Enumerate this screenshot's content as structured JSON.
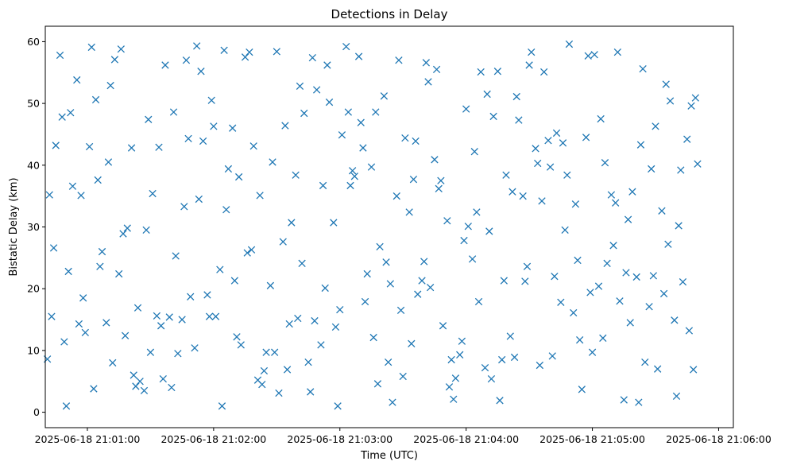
{
  "chart_data": {
    "type": "scatter",
    "title": "Detections in Delay",
    "xlabel": "Time (UTC)",
    "ylabel": "Bistatic Delay (km)",
    "marker": "x",
    "color": "#1f77b4",
    "grid": false,
    "x_ticks": [
      "2025-06-18 21:01:00",
      "2025-06-18 21:02:00",
      "2025-06-18 21:03:00",
      "2025-06-18 21:04:00",
      "2025-06-18 21:05:00",
      "2025-06-18 21:06:00"
    ],
    "y_ticks": [
      0,
      10,
      20,
      30,
      40,
      50,
      60
    ],
    "xlim": [
      "2025-06-18 21:00:40",
      "2025-06-18 21:06:07"
    ],
    "ylim": [
      -2.5,
      62.5
    ],
    "x": [
      "2025-06-18 21:00:41",
      "2025-06-18 21:00:42",
      "2025-06-18 21:00:43",
      "2025-06-18 21:00:44",
      "2025-06-18 21:00:45",
      "2025-06-18 21:00:47",
      "2025-06-18 21:00:48",
      "2025-06-18 21:00:49",
      "2025-06-18 21:00:50",
      "2025-06-18 21:00:51",
      "2025-06-18 21:00:52",
      "2025-06-18 21:00:53",
      "2025-06-18 21:00:55",
      "2025-06-18 21:00:56",
      "2025-06-18 21:00:57",
      "2025-06-18 21:00:58",
      "2025-06-18 21:00:59",
      "2025-06-18 21:01:01",
      "2025-06-18 21:01:02",
      "2025-06-18 21:01:03",
      "2025-06-18 21:01:04",
      "2025-06-18 21:01:05",
      "2025-06-18 21:01:06",
      "2025-06-18 21:01:07",
      "2025-06-18 21:01:09",
      "2025-06-18 21:01:10",
      "2025-06-18 21:01:11",
      "2025-06-18 21:01:12",
      "2025-06-18 21:01:13",
      "2025-06-18 21:01:15",
      "2025-06-18 21:01:16",
      "2025-06-18 21:01:17",
      "2025-06-18 21:01:18",
      "2025-06-18 21:01:19",
      "2025-06-18 21:01:21",
      "2025-06-18 21:01:22",
      "2025-06-18 21:01:23",
      "2025-06-18 21:01:24",
      "2025-06-18 21:01:25",
      "2025-06-18 21:01:27",
      "2025-06-18 21:01:28",
      "2025-06-18 21:01:29",
      "2025-06-18 21:01:30",
      "2025-06-18 21:01:31",
      "2025-06-18 21:01:33",
      "2025-06-18 21:01:34",
      "2025-06-18 21:01:35",
      "2025-06-18 21:01:36",
      "2025-06-18 21:01:37",
      "2025-06-18 21:01:39",
      "2025-06-18 21:01:40",
      "2025-06-18 21:01:41",
      "2025-06-18 21:01:42",
      "2025-06-18 21:01:43",
      "2025-06-18 21:01:45",
      "2025-06-18 21:01:46",
      "2025-06-18 21:01:47",
      "2025-06-18 21:01:48",
      "2025-06-18 21:01:49",
      "2025-06-18 21:01:51",
      "2025-06-18 21:01:52",
      "2025-06-18 21:01:53",
      "2025-06-18 21:01:54",
      "2025-06-18 21:01:55",
      "2025-06-18 21:01:57",
      "2025-06-18 21:01:58",
      "2025-06-18 21:01:59",
      "2025-06-18 21:02:00",
      "2025-06-18 21:02:01",
      "2025-06-18 21:02:03",
      "2025-06-18 21:02:04",
      "2025-06-18 21:02:05",
      "2025-06-18 21:02:06",
      "2025-06-18 21:02:07",
      "2025-06-18 21:02:09",
      "2025-06-18 21:02:10",
      "2025-06-18 21:02:11",
      "2025-06-18 21:02:12",
      "2025-06-18 21:02:13",
      "2025-06-18 21:02:15",
      "2025-06-18 21:02:16",
      "2025-06-18 21:02:17",
      "2025-06-18 21:02:18",
      "2025-06-18 21:02:19",
      "2025-06-18 21:02:21",
      "2025-06-18 21:02:22",
      "2025-06-18 21:02:23",
      "2025-06-18 21:02:24",
      "2025-06-18 21:02:25",
      "2025-06-18 21:02:27",
      "2025-06-18 21:02:28",
      "2025-06-18 21:02:29",
      "2025-06-18 21:02:30",
      "2025-06-18 21:02:31",
      "2025-06-18 21:02:33",
      "2025-06-18 21:02:34",
      "2025-06-18 21:02:35",
      "2025-06-18 21:02:36",
      "2025-06-18 21:02:37",
      "2025-06-18 21:02:39",
      "2025-06-18 21:02:40",
      "2025-06-18 21:02:41",
      "2025-06-18 21:02:42",
      "2025-06-18 21:02:43",
      "2025-06-18 21:02:45",
      "2025-06-18 21:02:46",
      "2025-06-18 21:02:47",
      "2025-06-18 21:02:48",
      "2025-06-18 21:02:49",
      "2025-06-18 21:02:51",
      "2025-06-18 21:02:52",
      "2025-06-18 21:02:53",
      "2025-06-18 21:02:54",
      "2025-06-18 21:02:55",
      "2025-06-18 21:02:57",
      "2025-06-18 21:02:58",
      "2025-06-18 21:02:59",
      "2025-06-18 21:03:00",
      "2025-06-18 21:03:01",
      "2025-06-18 21:03:03",
      "2025-06-18 21:03:04",
      "2025-06-18 21:03:05",
      "2025-06-18 21:03:06",
      "2025-06-18 21:03:07",
      "2025-06-18 21:03:09",
      "2025-06-18 21:03:10",
      "2025-06-18 21:03:11",
      "2025-06-18 21:03:12",
      "2025-06-18 21:03:13",
      "2025-06-18 21:03:15",
      "2025-06-18 21:03:16",
      "2025-06-18 21:03:17",
      "2025-06-18 21:03:18",
      "2025-06-18 21:03:19",
      "2025-06-18 21:03:21",
      "2025-06-18 21:03:22",
      "2025-06-18 21:03:23",
      "2025-06-18 21:03:24",
      "2025-06-18 21:03:25",
      "2025-06-18 21:03:27",
      "2025-06-18 21:03:28",
      "2025-06-18 21:03:29",
      "2025-06-18 21:03:30",
      "2025-06-18 21:03:31",
      "2025-06-18 21:03:33",
      "2025-06-18 21:03:34",
      "2025-06-18 21:03:35",
      "2025-06-18 21:03:36",
      "2025-06-18 21:03:37",
      "2025-06-18 21:03:39",
      "2025-06-18 21:03:40",
      "2025-06-18 21:03:41",
      "2025-06-18 21:03:42",
      "2025-06-18 21:03:43",
      "2025-06-18 21:03:45",
      "2025-06-18 21:03:46",
      "2025-06-18 21:03:47",
      "2025-06-18 21:03:48",
      "2025-06-18 21:03:49",
      "2025-06-18 21:03:51",
      "2025-06-18 21:03:52",
      "2025-06-18 21:03:53",
      "2025-06-18 21:03:54",
      "2025-06-18 21:03:55",
      "2025-06-18 21:03:57",
      "2025-06-18 21:03:58",
      "2025-06-18 21:03:59",
      "2025-06-18 21:04:00",
      "2025-06-18 21:04:01",
      "2025-06-18 21:04:03",
      "2025-06-18 21:04:04",
      "2025-06-18 21:04:05",
      "2025-06-18 21:04:06",
      "2025-06-18 21:04:07",
      "2025-06-18 21:04:09",
      "2025-06-18 21:04:10",
      "2025-06-18 21:04:11",
      "2025-06-18 21:04:12",
      "2025-06-18 21:04:13",
      "2025-06-18 21:04:15",
      "2025-06-18 21:04:16",
      "2025-06-18 21:04:17",
      "2025-06-18 21:04:18",
      "2025-06-18 21:04:19",
      "2025-06-18 21:04:21",
      "2025-06-18 21:04:22",
      "2025-06-18 21:04:23",
      "2025-06-18 21:04:24",
      "2025-06-18 21:04:25",
      "2025-06-18 21:04:27",
      "2025-06-18 21:04:28",
      "2025-06-18 21:04:29",
      "2025-06-18 21:04:30",
      "2025-06-18 21:04:31",
      "2025-06-18 21:04:33",
      "2025-06-18 21:04:34",
      "2025-06-18 21:04:35",
      "2025-06-18 21:04:36",
      "2025-06-18 21:04:37",
      "2025-06-18 21:04:39",
      "2025-06-18 21:04:40",
      "2025-06-18 21:04:41",
      "2025-06-18 21:04:42",
      "2025-06-18 21:04:43",
      "2025-06-18 21:04:45",
      "2025-06-18 21:04:46",
      "2025-06-18 21:04:47",
      "2025-06-18 21:04:48",
      "2025-06-18 21:04:49",
      "2025-06-18 21:04:51",
      "2025-06-18 21:04:52",
      "2025-06-18 21:04:53",
      "2025-06-18 21:04:54",
      "2025-06-18 21:04:55",
      "2025-06-18 21:04:57",
      "2025-06-18 21:04:58",
      "2025-06-18 21:04:59",
      "2025-06-18 21:05:00",
      "2025-06-18 21:05:01",
      "2025-06-18 21:05:03",
      "2025-06-18 21:05:04",
      "2025-06-18 21:05:05",
      "2025-06-18 21:05:06",
      "2025-06-18 21:05:07",
      "2025-06-18 21:05:09",
      "2025-06-18 21:05:10",
      "2025-06-18 21:05:11",
      "2025-06-18 21:05:12",
      "2025-06-18 21:05:13",
      "2025-06-18 21:05:15",
      "2025-06-18 21:05:16",
      "2025-06-18 21:05:17",
      "2025-06-18 21:05:18",
      "2025-06-18 21:05:19",
      "2025-06-18 21:05:21",
      "2025-06-18 21:05:22",
      "2025-06-18 21:05:23",
      "2025-06-18 21:05:24",
      "2025-06-18 21:05:25",
      "2025-06-18 21:05:27",
      "2025-06-18 21:05:28",
      "2025-06-18 21:05:29",
      "2025-06-18 21:05:30",
      "2025-06-18 21:05:31",
      "2025-06-18 21:05:33",
      "2025-06-18 21:05:34",
      "2025-06-18 21:05:35",
      "2025-06-18 21:05:36",
      "2025-06-18 21:05:37",
      "2025-06-18 21:05:39",
      "2025-06-18 21:05:40",
      "2025-06-18 21:05:41",
      "2025-06-18 21:05:42",
      "2025-06-18 21:05:43",
      "2025-06-18 21:05:45",
      "2025-06-18 21:05:46",
      "2025-06-18 21:05:47",
      "2025-06-18 21:05:48",
      "2025-06-18 21:05:49",
      "2025-06-18 21:05:50"
    ],
    "y": [
      8.6,
      35.2,
      15.5,
      26.6,
      43.2,
      57.8,
      47.8,
      11.4,
      1.0,
      22.8,
      48.5,
      36.6,
      53.8,
      14.3,
      35.1,
      18.5,
      12.9,
      43.0,
      59.1,
      3.8,
      50.6,
      37.6,
      23.6,
      26.0,
      14.5,
      40.5,
      52.9,
      8.0,
      57.1,
      22.4,
      58.8,
      28.9,
      12.4,
      29.8,
      42.8,
      6.0,
      4.2,
      16.9,
      5.0,
      3.5,
      29.5,
      47.4,
      9.7,
      35.4,
      15.6,
      42.9,
      14.0,
      5.4,
      56.2,
      15.4,
      4.0,
      48.6,
      25.3,
      9.5,
      15.0,
      33.3,
      57.0,
      44.3,
      18.7,
      10.4,
      59.3,
      34.5,
      55.2,
      43.9,
      19.0,
      15.5,
      50.5,
      46.3,
      15.5,
      23.1,
      1.0,
      58.6,
      32.8,
      39.4,
      46.0,
      21.3,
      12.2,
      38.1,
      10.9,
      57.5,
      25.8,
      58.3,
      26.3,
      43.1,
      5.2,
      35.1,
      4.5,
      6.7,
      9.7,
      20.5,
      40.5,
      9.7,
      58.4,
      3.1,
      27.6,
      46.4,
      6.9,
      14.3,
      30.7,
      38.4,
      15.2,
      52.8,
      24.1,
      48.4,
      8.1,
      3.3,
      57.4,
      14.8,
      52.2,
      10.9,
      36.7,
      20.1,
      56.2,
      50.2,
      30.7,
      13.8,
      1.0,
      16.6,
      44.9,
      59.2,
      48.6,
      36.7,
      39.1,
      38.2,
      57.6,
      46.9,
      42.8,
      17.9,
      22.4,
      39.7,
      12.1,
      48.6,
      4.6,
      26.8,
      51.2,
      24.3,
      8.1,
      20.8,
      1.6,
      35.0,
      57.0,
      16.5,
      5.8,
      44.4,
      32.4,
      11.1,
      37.7,
      43.9,
      19.1,
      21.3,
      24.4,
      56.6,
      53.5,
      20.2,
      40.9,
      55.5,
      36.2,
      37.5,
      14.0,
      31.0,
      4.1,
      8.5,
      2.1,
      5.5,
      9.3,
      11.5,
      27.8,
      49.1,
      30.1,
      24.8,
      42.2,
      32.4,
      17.9,
      55.1,
      7.2,
      51.5,
      29.3,
      5.4,
      47.9,
      55.2,
      1.9,
      8.5,
      21.3,
      38.4,
      12.3,
      35.7,
      8.9,
      51.1,
      47.3,
      35.0,
      21.2,
      23.6,
      56.2,
      58.3,
      42.7,
      40.3,
      7.6,
      34.2,
      55.1,
      44.0,
      39.7,
      9.1,
      22.0,
      45.2,
      17.8,
      43.6,
      29.5,
      38.4,
      59.6,
      16.1,
      33.7,
      24.6,
      11.7,
      3.7,
      44.5,
      57.7,
      19.4,
      9.7,
      57.9,
      20.4,
      47.5,
      12.0,
      40.4,
      24.1,
      35.2,
      27.0,
      33.9,
      58.3,
      18.0,
      2.0,
      22.6,
      31.2,
      14.5,
      35.7,
      21.9,
      1.6,
      43.3,
      55.6,
      8.1,
      17.1,
      39.4,
      22.1,
      46.3,
      7.0,
      32.6,
      19.2,
      53.1,
      27.2,
      50.4,
      14.9,
      2.6,
      30.2,
      39.2,
      21.1,
      44.2,
      13.2,
      49.6,
      6.9,
      50.9,
      40.2
    ]
  }
}
